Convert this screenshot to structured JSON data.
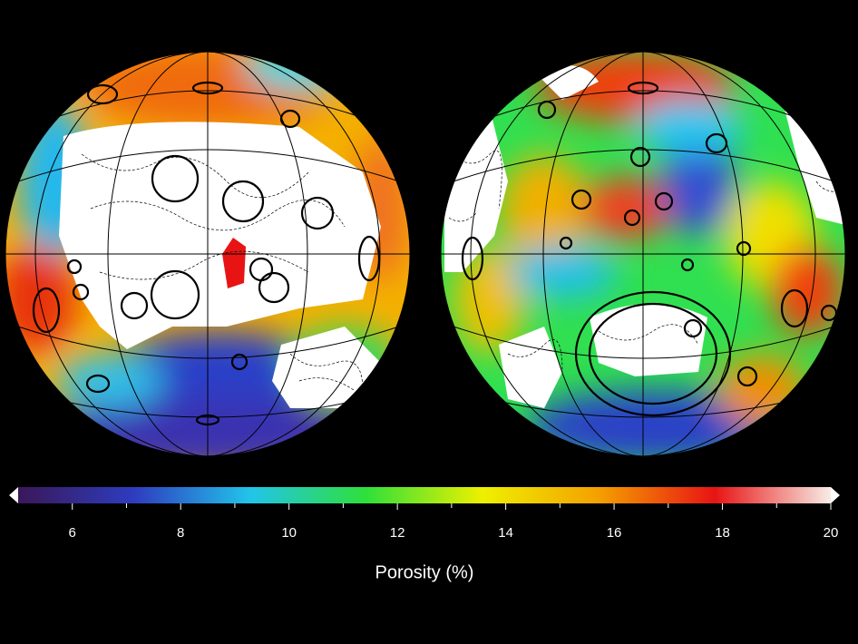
{
  "colorbar": {
    "label": "Porosity (%)",
    "range": [
      5,
      20
    ],
    "ticks": [
      6,
      8,
      10,
      12,
      14,
      16,
      18,
      20
    ],
    "minor_ticks": [
      7,
      9,
      11,
      13,
      15,
      17,
      19
    ],
    "colors": [
      "#3a1858",
      "#2e3cc0",
      "#22c4ea",
      "#2fe03a",
      "#eef000",
      "#f4a000",
      "#e81414",
      "#f8ece6"
    ]
  }
}
